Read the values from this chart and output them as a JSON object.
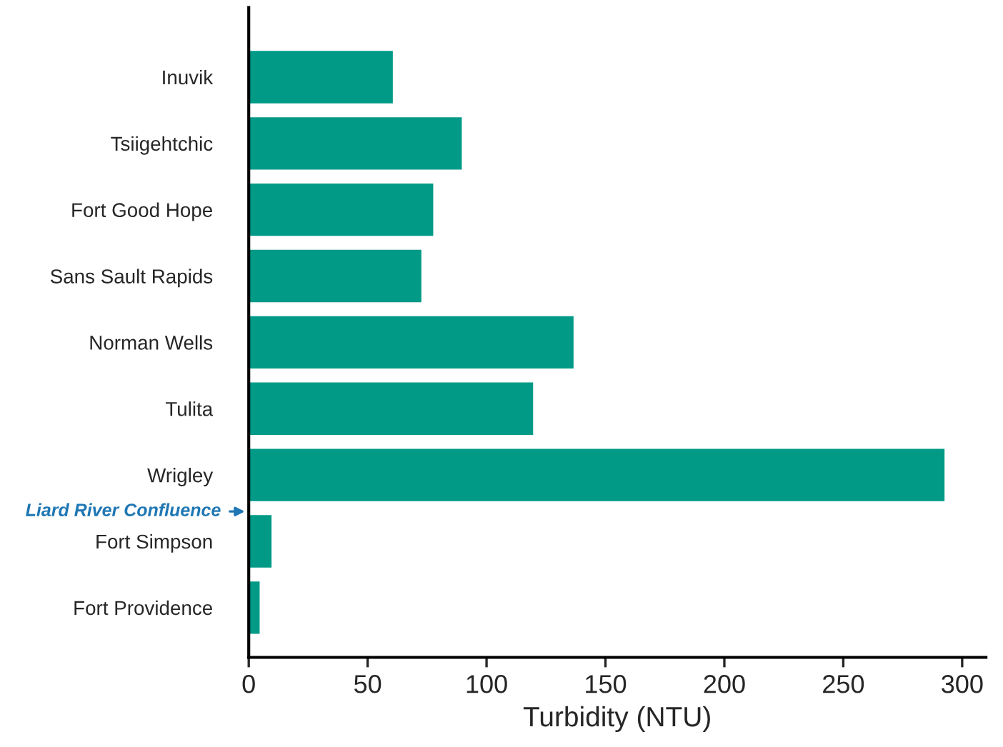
{
  "chart_data": {
    "type": "bar",
    "orientation": "horizontal",
    "xlabel": "Turbidity (NTU)",
    "categories": [
      "Inuvik",
      "Tsiigehtchic",
      "Fort Good Hope",
      "Sans Sault Rapids",
      "Norman Wells",
      "Tulita",
      "Wrigley",
      "Fort Simpson",
      "Fort Providence"
    ],
    "values": [
      61,
      90,
      78,
      73,
      137,
      120,
      293,
      10,
      5
    ],
    "color": "#009a87",
    "xlim": [
      0,
      310
    ],
    "xticks": [
      0,
      50,
      100,
      150,
      200,
      250,
      300
    ],
    "grid": false,
    "legend": false,
    "annotations": [
      "Liard River Confluence"
    ]
  }
}
